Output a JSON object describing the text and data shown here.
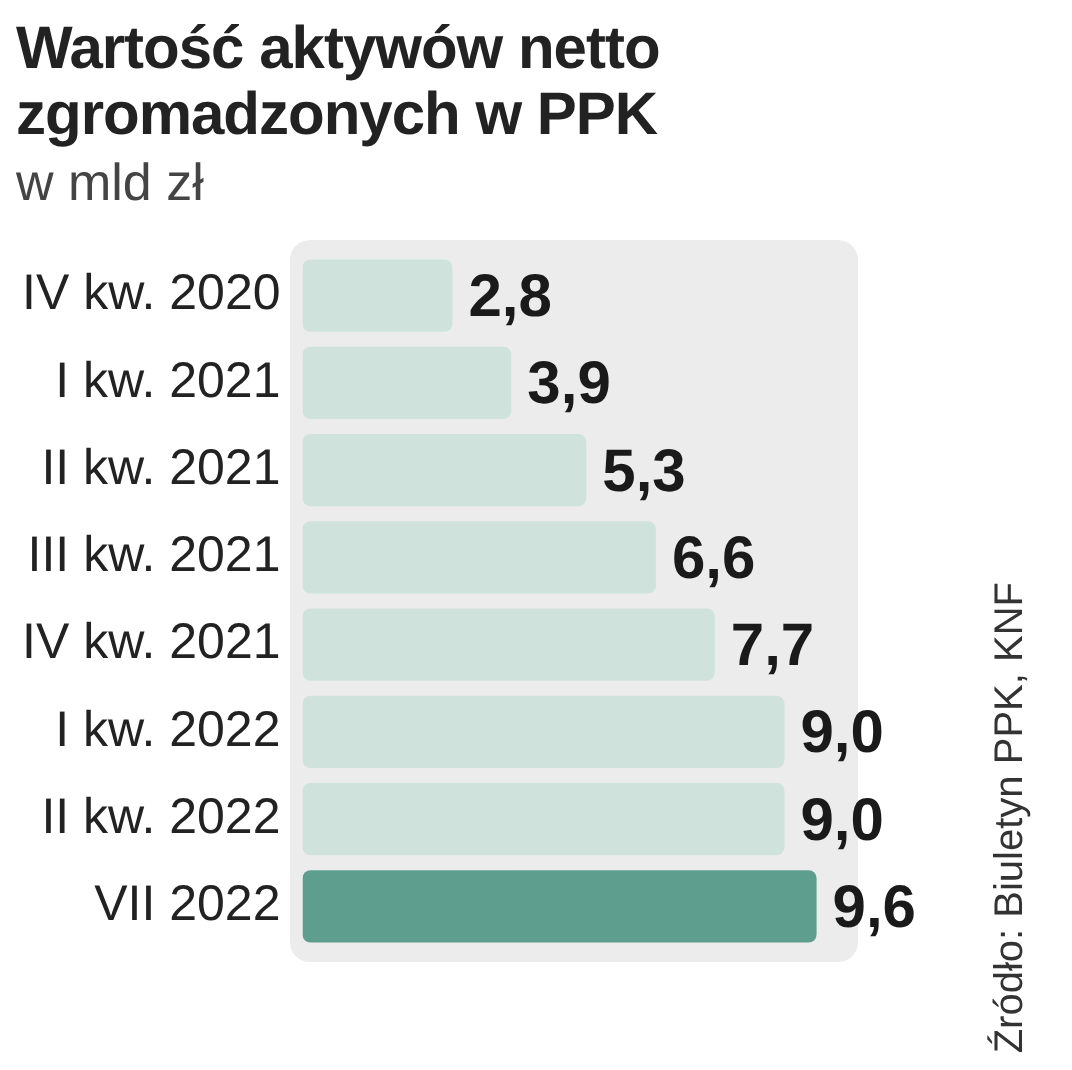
{
  "chart_data": {
    "type": "bar",
    "orientation": "horizontal",
    "title": "Wartość aktywów netto zgromadzonych w PPK",
    "subtitle": "w mld zł",
    "categories": [
      "IV kw. 2020",
      "I kw. 2021",
      "II kw. 2021",
      "III kw. 2021",
      "IV kw. 2021",
      "I kw. 2022",
      "II kw. 2022",
      "VII 2022"
    ],
    "values": [
      2.8,
      3.9,
      5.3,
      6.6,
      7.7,
      9.0,
      9.0,
      9.6
    ],
    "colors": [
      "#cfe3dc",
      "#cfe3dc",
      "#cfe3dc",
      "#cfe3dc",
      "#cfe3dc",
      "#cfe3dc",
      "#cfe3dc",
      "#5d9e8f"
    ],
    "value_labels": [
      "2,8",
      "3,9",
      "5,3",
      "6,6",
      "7,7",
      "9,0",
      "9,0",
      "9,6"
    ],
    "legend": false,
    "annotations": [
      "Źródło: Biuletyn PPK, KNF"
    ]
  }
}
